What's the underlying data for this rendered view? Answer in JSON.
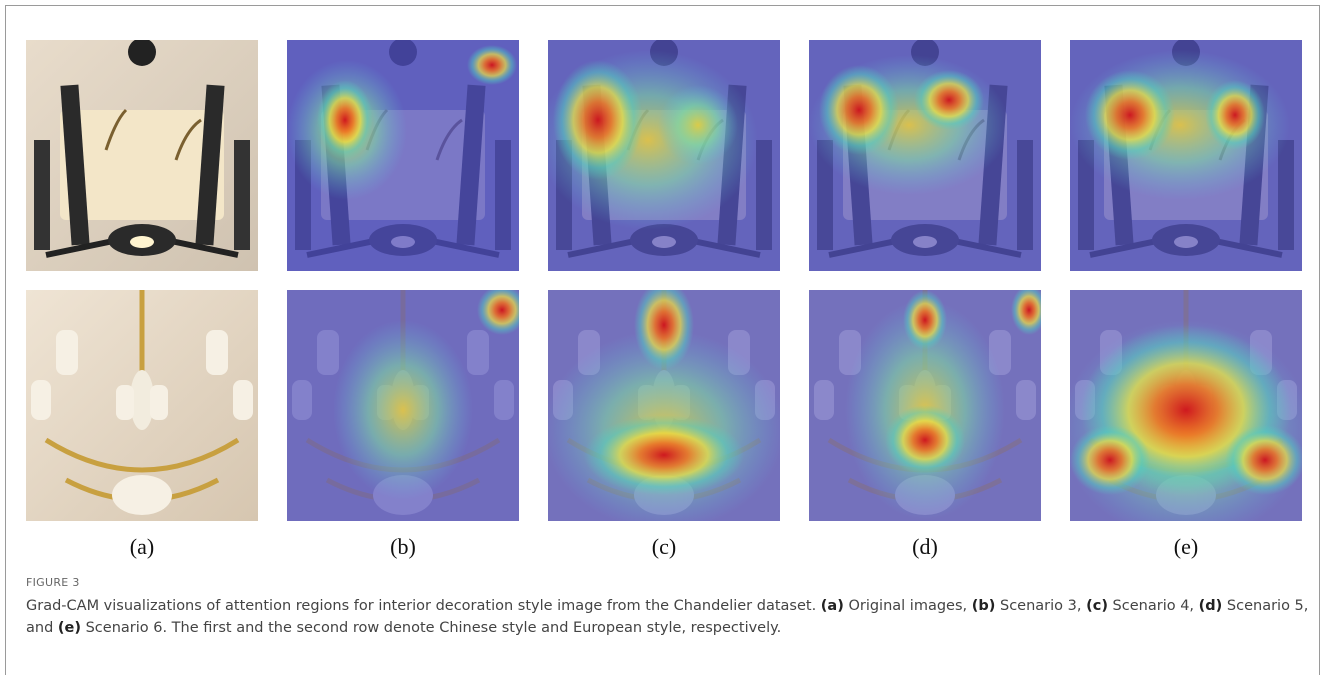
{
  "figure": {
    "panels": [
      {
        "label": "(a)"
      },
      {
        "label": "(b)"
      },
      {
        "label": "(c)"
      },
      {
        "label": "(d)"
      },
      {
        "label": "(e)"
      }
    ],
    "figure_label": "FIGURE 3",
    "caption": {
      "parts": [
        {
          "text": "Grad-CAM visualizations of attention regions for interior decoration style image from the Chandelier dataset. ",
          "bold": false
        },
        {
          "text": "(a)",
          "bold": true
        },
        {
          "text": " Original images, ",
          "bold": false
        },
        {
          "text": "(b)",
          "bold": true
        },
        {
          "text": " Scenario 3, ",
          "bold": false
        },
        {
          "text": "(c)",
          "bold": true
        },
        {
          "text": " Scenario 4, ",
          "bold": false
        },
        {
          "text": "(d)",
          "bold": true
        },
        {
          "text": " Scenario 5, and ",
          "bold": false
        },
        {
          "text": "(e)",
          "bold": true
        },
        {
          "text": " Scenario 6. The first and the second row denote Chinese style and European style, respectively.",
          "bold": false
        }
      ]
    }
  }
}
